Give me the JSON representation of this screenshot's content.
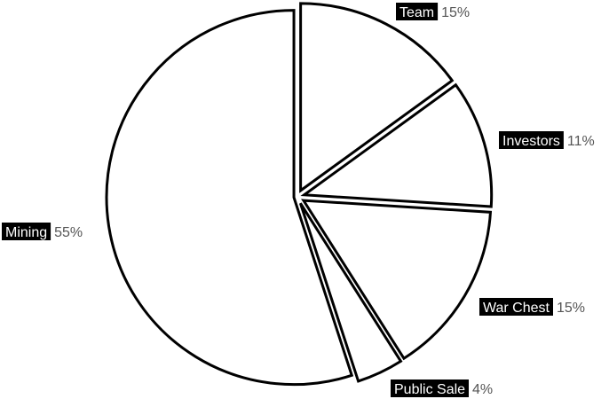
{
  "chart_data": {
    "type": "pie",
    "start_angle_deg": 0,
    "direction": "clockwise",
    "exploded": true,
    "slices": [
      {
        "label": "Team",
        "value": 15,
        "percent_text": "15%"
      },
      {
        "label": "Investors",
        "value": 11,
        "percent_text": "11%"
      },
      {
        "label": "War Chest",
        "value": 15,
        "percent_text": "15%"
      },
      {
        "label": "Public Sale",
        "value": 4,
        "percent_text": "4%"
      },
      {
        "label": "Mining",
        "value": 55,
        "percent_text": "55%"
      }
    ],
    "colors": {
      "slice_fill": "#ffffff",
      "slice_stroke": "#000000",
      "label_background": "#000000",
      "label_text": "#ffffff",
      "percent_text": "#555555"
    }
  }
}
